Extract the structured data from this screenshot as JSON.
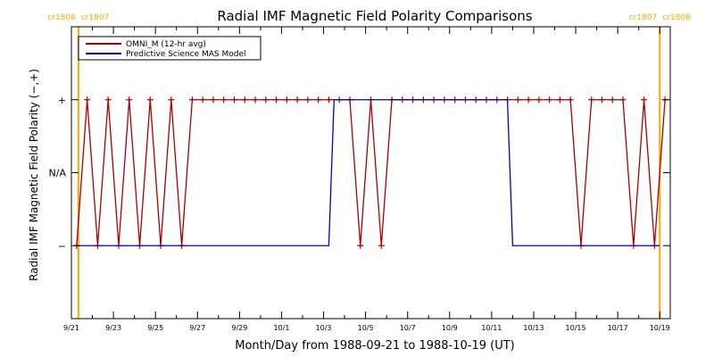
{
  "chart_data": {
    "type": "line",
    "title": "Radial IMF Magnetic Field Polarity Comparisons",
    "xlabel": "Month/Day from 1988-09-21 to 1988-10-19 (UT)",
    "ylabel": "Radial IMF Magnetic Field Polarity (−,+)",
    "x_range": [
      "1988-09-21",
      "1988-10-19"
    ],
    "x_tick_labels": [
      "9/21",
      "9/23",
      "9/25",
      "9/27",
      "9/29",
      "10/1",
      "10/3",
      "10/5",
      "10/7",
      "10/9",
      "10/11",
      "10/13",
      "10/15",
      "10/17",
      "10/19"
    ],
    "y_tick_labels": [
      "−",
      "N/A",
      "+"
    ],
    "y_levels": [
      -1,
      0,
      1
    ],
    "ylim": [
      -2,
      2
    ],
    "grid": false,
    "legend_position": "top-left",
    "series": [
      {
        "name": "OMNI_M (12-hr avg)",
        "color": "#aa0000",
        "marker": "plus",
        "points": [
          {
            "x": "1988-09-21T06:00",
            "y": -1
          },
          {
            "x": "1988-09-21T18:00",
            "y": 1
          },
          {
            "x": "1988-09-22T06:00",
            "y": -1
          },
          {
            "x": "1988-09-22T18:00",
            "y": 1
          },
          {
            "x": "1988-09-23T06:00",
            "y": -1
          },
          {
            "x": "1988-09-23T18:00",
            "y": 1
          },
          {
            "x": "1988-09-24T06:00",
            "y": -1
          },
          {
            "x": "1988-09-24T18:00",
            "y": 1
          },
          {
            "x": "1988-09-25T06:00",
            "y": -1
          },
          {
            "x": "1988-09-25T18:00",
            "y": 1
          },
          {
            "x": "1988-09-26T06:00",
            "y": -1
          },
          {
            "x": "1988-09-26T18:00",
            "y": 1
          },
          {
            "x": "1988-09-27T06:00",
            "y": 1
          },
          {
            "x": "1988-09-27T18:00",
            "y": 1
          },
          {
            "x": "1988-09-28T06:00",
            "y": 1
          },
          {
            "x": "1988-09-28T18:00",
            "y": 1
          },
          {
            "x": "1988-09-29T06:00",
            "y": 1
          },
          {
            "x": "1988-09-29T18:00",
            "y": 1
          },
          {
            "x": "1988-09-30T06:00",
            "y": 1
          },
          {
            "x": "1988-09-30T18:00",
            "y": 1
          },
          {
            "x": "1988-10-01T06:00",
            "y": 1
          },
          {
            "x": "1988-10-01T18:00",
            "y": 1
          },
          {
            "x": "1988-10-02T06:00",
            "y": 1
          },
          {
            "x": "1988-10-02T18:00",
            "y": 1
          },
          {
            "x": "1988-10-03T06:00",
            "y": 1
          },
          {
            "x": "1988-10-03T18:00",
            "y": 1
          },
          {
            "x": "1988-10-04T06:00",
            "y": 1
          },
          {
            "x": "1988-10-04T18:00",
            "y": -1
          },
          {
            "x": "1988-10-05T06:00",
            "y": 1
          },
          {
            "x": "1988-10-05T18:00",
            "y": -1
          },
          {
            "x": "1988-10-06T06:00",
            "y": 1
          },
          {
            "x": "1988-10-06T18:00",
            "y": 1
          },
          {
            "x": "1988-10-07T06:00",
            "y": 1
          },
          {
            "x": "1988-10-07T18:00",
            "y": 1
          },
          {
            "x": "1988-10-08T06:00",
            "y": 1
          },
          {
            "x": "1988-10-08T18:00",
            "y": 1
          },
          {
            "x": "1988-10-09T06:00",
            "y": 1
          },
          {
            "x": "1988-10-09T18:00",
            "y": 1
          },
          {
            "x": "1988-10-10T06:00",
            "y": 1
          },
          {
            "x": "1988-10-10T18:00",
            "y": 1
          },
          {
            "x": "1988-10-11T06:00",
            "y": 1
          },
          {
            "x": "1988-10-11T18:00",
            "y": 1
          },
          {
            "x": "1988-10-12T06:00",
            "y": 1
          },
          {
            "x": "1988-10-12T18:00",
            "y": 1
          },
          {
            "x": "1988-10-13T06:00",
            "y": 1
          },
          {
            "x": "1988-10-13T18:00",
            "y": 1
          },
          {
            "x": "1988-10-14T06:00",
            "y": 1
          },
          {
            "x": "1988-10-14T18:00",
            "y": 1
          },
          {
            "x": "1988-10-15T06:00",
            "y": -1
          },
          {
            "x": "1988-10-15T18:00",
            "y": 1
          },
          {
            "x": "1988-10-16T06:00",
            "y": 1
          },
          {
            "x": "1988-10-16T18:00",
            "y": 1
          },
          {
            "x": "1988-10-17T06:00",
            "y": 1
          },
          {
            "x": "1988-10-17T18:00",
            "y": -1
          },
          {
            "x": "1988-10-18T06:00",
            "y": 1
          },
          {
            "x": "1988-10-18T18:00",
            "y": -1
          },
          {
            "x": "1988-10-19T06:00",
            "y": 1
          }
        ]
      },
      {
        "name": "Predictive Science MAS Model",
        "color": "#0000cc",
        "marker": "none",
        "points": [
          {
            "x": "1988-09-21T06:00",
            "y": -1
          },
          {
            "x": "1988-10-03T06:00",
            "y": -1
          },
          {
            "x": "1988-10-03T12:00",
            "y": 1
          },
          {
            "x": "1988-10-11T18:00",
            "y": 1
          },
          {
            "x": "1988-10-12T00:00",
            "y": -1
          },
          {
            "x": "1988-10-19T00:00",
            "y": -1
          }
        ]
      }
    ],
    "carrington_markers": [
      {
        "date": "1988-09-21T08:00",
        "label_left": "cr1806",
        "label_right": "cr1807",
        "color": "#ffa500"
      },
      {
        "date": "1988-10-19T00:00",
        "label_left": "cr1807",
        "label_right": "cr1808",
        "color": "#ffa500"
      }
    ]
  }
}
